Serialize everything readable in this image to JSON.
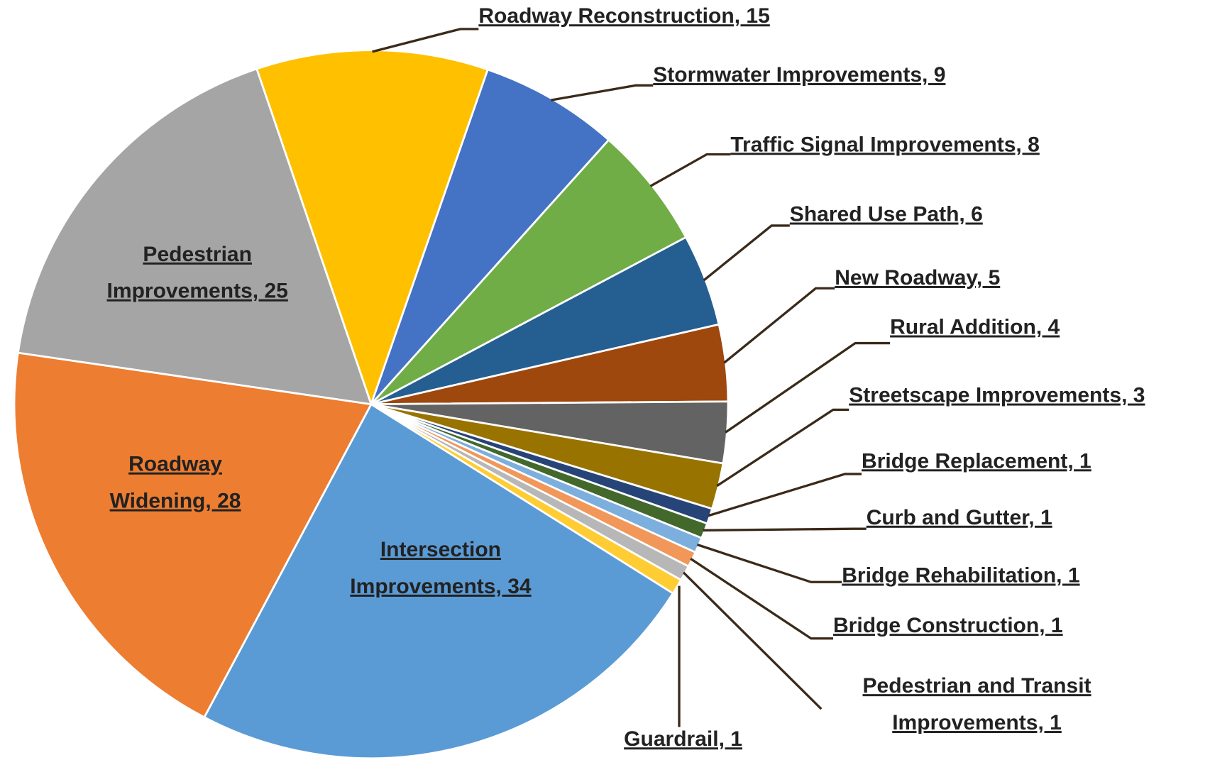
{
  "chart_data": {
    "type": "pie",
    "categories": [
      "Roadway Reconstruction",
      "Stormwater Improvements",
      "Traffic Signal Improvements",
      "Shared Use Path",
      "New Roadway",
      "Rural Addition",
      "Streetscape Improvements",
      "Bridge Replacement",
      "Curb and Gutter",
      "Bridge Rehabilitation",
      "Bridge Construction",
      "Pedestrian and Transit Improvements",
      "Guardrail",
      "Intersection Improvements",
      "Roadway Widening",
      "Pedestrian Improvements"
    ],
    "values": [
      15,
      9,
      8,
      6,
      5,
      4,
      3,
      1,
      1,
      1,
      1,
      1,
      1,
      34,
      28,
      25
    ],
    "value_labels": [
      [
        "Roadway Reconstruction, 15"
      ],
      [
        "Stormwater Improvements, 9"
      ],
      [
        "Traffic Signal Improvements, 8"
      ],
      [
        "Shared Use Path, 6"
      ],
      [
        "New Roadway, 5"
      ],
      [
        "Rural Addition, 4"
      ],
      [
        "Streetscape Improvements, 3"
      ],
      [
        "Bridge Replacement, 1"
      ],
      [
        "Curb and Gutter, 1"
      ],
      [
        "Bridge Rehabilitation, 1"
      ],
      [
        "Bridge Construction, 1"
      ],
      [
        "Pedestrian and Transit",
        "Improvements, 1"
      ],
      [
        "Guardrail, 1"
      ],
      [
        "Intersection",
        "Improvements, 34"
      ],
      [
        "Roadway",
        "Widening, 28"
      ],
      [
        "Pedestrian",
        "Improvements, 25"
      ]
    ],
    "colors": [
      "#FFC000",
      "#4472C4",
      "#70AD47",
      "#255E91",
      "#9E480E",
      "#636363",
      "#997300",
      "#264478",
      "#43682B",
      "#7CAFDD",
      "#F1975A",
      "#B7B7B7",
      "#FFCD33",
      "#5B9BD5",
      "#ED7D31",
      "#A5A5A5"
    ]
  }
}
